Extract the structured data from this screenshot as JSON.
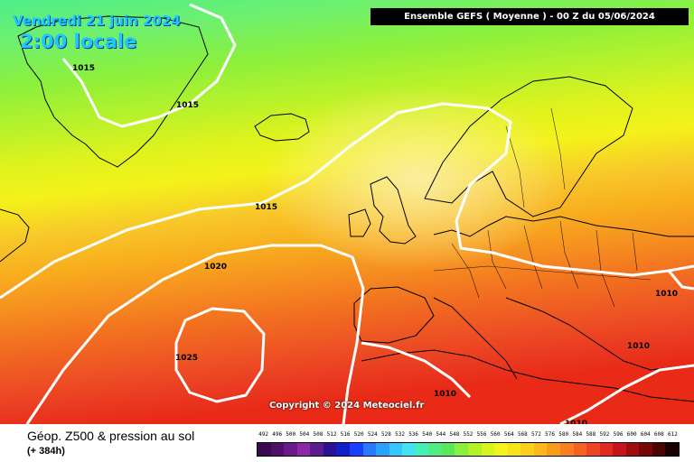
{
  "header": {
    "date": "Vendredi 21 juin 2024",
    "local_time": "2:00 locale",
    "run_info": "Ensemble GEFS  ( Moyenne )  -  00 Z du 05/06/2024"
  },
  "map": {
    "isobar_labels": [
      "1015",
      "1015",
      "1015",
      "1020",
      "1025",
      "1010",
      "1010",
      "1010",
      "1010"
    ],
    "copyright": "Copyright © 2024 Meteociel.fr"
  },
  "footer": {
    "title": "Géop. Z500 & pression au sol",
    "lead": "(+ 384h)"
  },
  "scale": {
    "values": [
      "492",
      "496",
      "500",
      "504",
      "508",
      "512",
      "516",
      "520",
      "524",
      "528",
      "532",
      "536",
      "540",
      "544",
      "548",
      "552",
      "556",
      "560",
      "564",
      "568",
      "572",
      "576",
      "580",
      "584",
      "588",
      "592",
      "596",
      "600",
      "604",
      "608",
      "612"
    ],
    "colors": [
      "#3a0a50",
      "#50106a",
      "#6a1a8a",
      "#8a2aa8",
      "#5a1e8c",
      "#2a1296",
      "#1020c8",
      "#1a40ff",
      "#2878ff",
      "#2aa0ff",
      "#34c8ff",
      "#40e4f0",
      "#46f0b4",
      "#50ee82",
      "#5ae85a",
      "#8af03c",
      "#b4f228",
      "#d8f41e",
      "#f2f41a",
      "#f8e41a",
      "#fcd01a",
      "#fcb81a",
      "#fa9c1a",
      "#f8801e",
      "#f46420",
      "#ee4422",
      "#e42a1e",
      "#c8141a",
      "#a00c10",
      "#780808",
      "#4a0404",
      "#1a0000"
    ],
    "field_colors": [
      "#4eee8a",
      "#6ef06e",
      "#8cf03c",
      "#b8f22a",
      "#def21e",
      "#f4f21a",
      "#faec8c",
      "#fad874",
      "#f8c82a",
      "#f8ae1e",
      "#f69020",
      "#f27020",
      "#ee5424",
      "#ea3c22",
      "#e82a16"
    ]
  }
}
